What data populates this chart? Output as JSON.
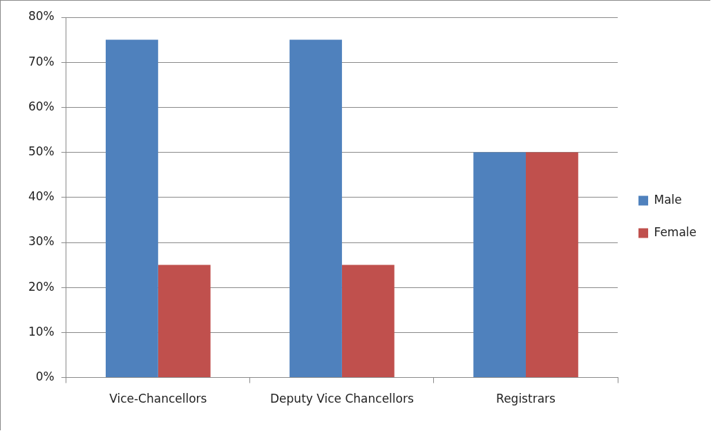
{
  "chart_data": {
    "type": "bar",
    "categories": [
      "Vice-Chancellors",
      "Deputy Vice Chancellors",
      "Registrars"
    ],
    "series": [
      {
        "name": "Male",
        "color": "#4f81bd",
        "values": [
          75,
          75,
          50
        ]
      },
      {
        "name": "Female",
        "color": "#c0504d",
        "values": [
          25,
          25,
          50
        ]
      }
    ],
    "ylim": [
      0,
      80
    ],
    "yticks": [
      {
        "value": 0,
        "label": "0%"
      },
      {
        "value": 10,
        "label": "10%"
      },
      {
        "value": 20,
        "label": "20%"
      },
      {
        "value": 30,
        "label": "30%"
      },
      {
        "value": 40,
        "label": "40%"
      },
      {
        "value": 50,
        "label": "50%"
      },
      {
        "value": 60,
        "label": "60%"
      },
      {
        "value": 70,
        "label": "70%"
      },
      {
        "value": 80,
        "label": "80%"
      }
    ],
    "grid": "y",
    "legend": "right"
  }
}
